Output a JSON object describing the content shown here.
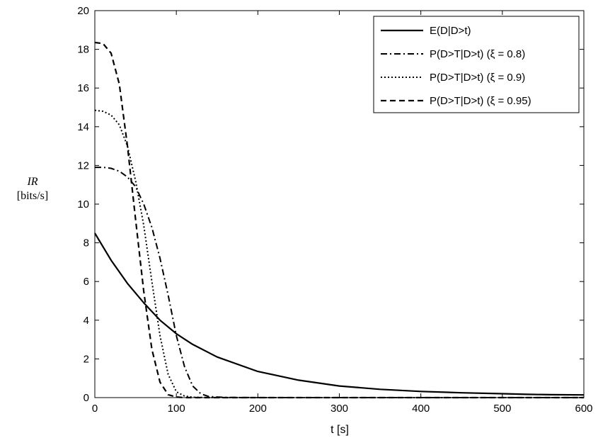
{
  "chart_data": {
    "type": "line",
    "xlabel": "t [s]",
    "ylabel_line1": "IR",
    "ylabel_line2": "[bits/s]",
    "xlim": [
      0,
      600
    ],
    "ylim": [
      0,
      20
    ],
    "xticks": [
      0,
      100,
      200,
      300,
      400,
      500,
      600
    ],
    "yticks": [
      0,
      2,
      4,
      6,
      8,
      10,
      12,
      14,
      16,
      18,
      20
    ],
    "grid": false,
    "legend_position": "top-right",
    "series": [
      {
        "name": "E(D|D>t)",
        "style": "solid",
        "x": [
          0,
          20,
          40,
          60,
          80,
          100,
          120,
          150,
          200,
          250,
          300,
          350,
          400,
          450,
          500,
          530,
          560,
          600
        ],
        "y": [
          8.5,
          7.1,
          5.9,
          4.9,
          4.0,
          3.3,
          2.75,
          2.1,
          1.35,
          0.9,
          0.6,
          0.43,
          0.32,
          0.25,
          0.2,
          0.17,
          0.15,
          0.14
        ]
      },
      {
        "name": "P(D>T|D>t) (ξ = 0.8)",
        "style": "dashdot",
        "x": [
          0,
          10,
          20,
          30,
          40,
          50,
          60,
          70,
          80,
          90,
          100,
          110,
          120,
          130,
          140,
          160,
          200,
          300,
          600
        ],
        "y": [
          11.9,
          11.9,
          11.85,
          11.7,
          11.4,
          10.9,
          10.0,
          8.8,
          7.2,
          5.3,
          3.2,
          1.6,
          0.6,
          0.2,
          0.05,
          0.01,
          0.0,
          0.0,
          0.0
        ]
      },
      {
        "name": "P(D>T|D>t) (ξ = 0.9)",
        "style": "dotted",
        "x": [
          0,
          10,
          20,
          30,
          40,
          50,
          60,
          70,
          80,
          90,
          100,
          110,
          120,
          140,
          200,
          600
        ],
        "y": [
          14.85,
          14.8,
          14.6,
          14.1,
          13.0,
          11.2,
          8.9,
          6.0,
          3.2,
          1.2,
          0.3,
          0.08,
          0.02,
          0.0,
          0.0,
          0.0
        ]
      },
      {
        "name": "P(D>T|D>t) (ξ = 0.95)",
        "style": "dashed",
        "x": [
          0,
          10,
          20,
          30,
          40,
          50,
          60,
          70,
          80,
          90,
          100,
          110,
          120,
          160,
          600
        ],
        "y": [
          18.35,
          18.3,
          17.8,
          16.2,
          13.0,
          9.2,
          5.5,
          2.5,
          0.8,
          0.15,
          0.03,
          0.0,
          0.0,
          0.0,
          0.0
        ]
      }
    ]
  }
}
